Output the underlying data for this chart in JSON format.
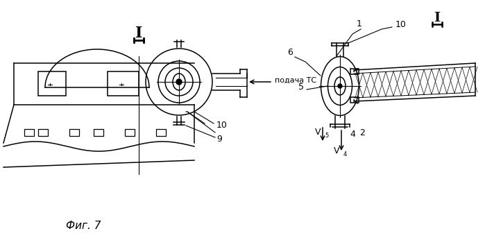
{
  "fig_label": "Фиг. 7",
  "background_color": "#ffffff",
  "annotation_podacha": "подача ТС",
  "labels": {
    "10_left": "10",
    "9": "9",
    "1": "1",
    "10_right": "10",
    "6": "6",
    "5": "5",
    "V5": "V",
    "V5_sub": "5",
    "V4": "V",
    "V4_sub": "4",
    "4": "4",
    "2": "2"
  }
}
